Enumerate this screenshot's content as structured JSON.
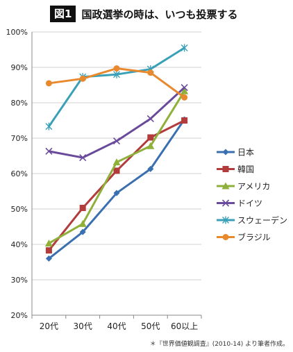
{
  "figure": {
    "label": "図1",
    "title": "国政選挙の時は、いつも投票する",
    "source": "＊『世界価値観調査』(2010-14) より筆者作成。"
  },
  "chart_data": {
    "type": "line",
    "categories": [
      "20代",
      "30代",
      "40代",
      "50代",
      "60以上"
    ],
    "ylim": [
      20,
      100
    ],
    "yticks": [
      "20%",
      "30%",
      "40%",
      "50%",
      "60%",
      "70%",
      "80%",
      "90%",
      "100%"
    ],
    "grid": true,
    "legend_position": "right",
    "series": [
      {
        "name": "日本",
        "values": [
          36,
          43.5,
          54.5,
          61.3,
          75.3
        ],
        "color": "#3a6fb0",
        "marker": "diamond"
      },
      {
        "name": "韓国",
        "values": [
          38.3,
          50.3,
          60.8,
          70.2,
          75
        ],
        "color": "#b23b3b",
        "marker": "square"
      },
      {
        "name": "アメリカ",
        "values": [
          40.3,
          45.8,
          63.2,
          67.8,
          83.3
        ],
        "color": "#8fb03a",
        "marker": "triangle"
      },
      {
        "name": "ドイツ",
        "values": [
          66.3,
          64.5,
          69.2,
          75.5,
          84.3
        ],
        "color": "#6a4a9a",
        "marker": "x"
      },
      {
        "name": "スウェーデン",
        "values": [
          73.3,
          87.3,
          88,
          89.5,
          95.5
        ],
        "color": "#3aa0b8",
        "marker": "star"
      },
      {
        "name": "ブラジル",
        "values": [
          85.5,
          86.8,
          89.7,
          88.5,
          81.5
        ],
        "color": "#e8892e",
        "marker": "circle"
      }
    ]
  }
}
